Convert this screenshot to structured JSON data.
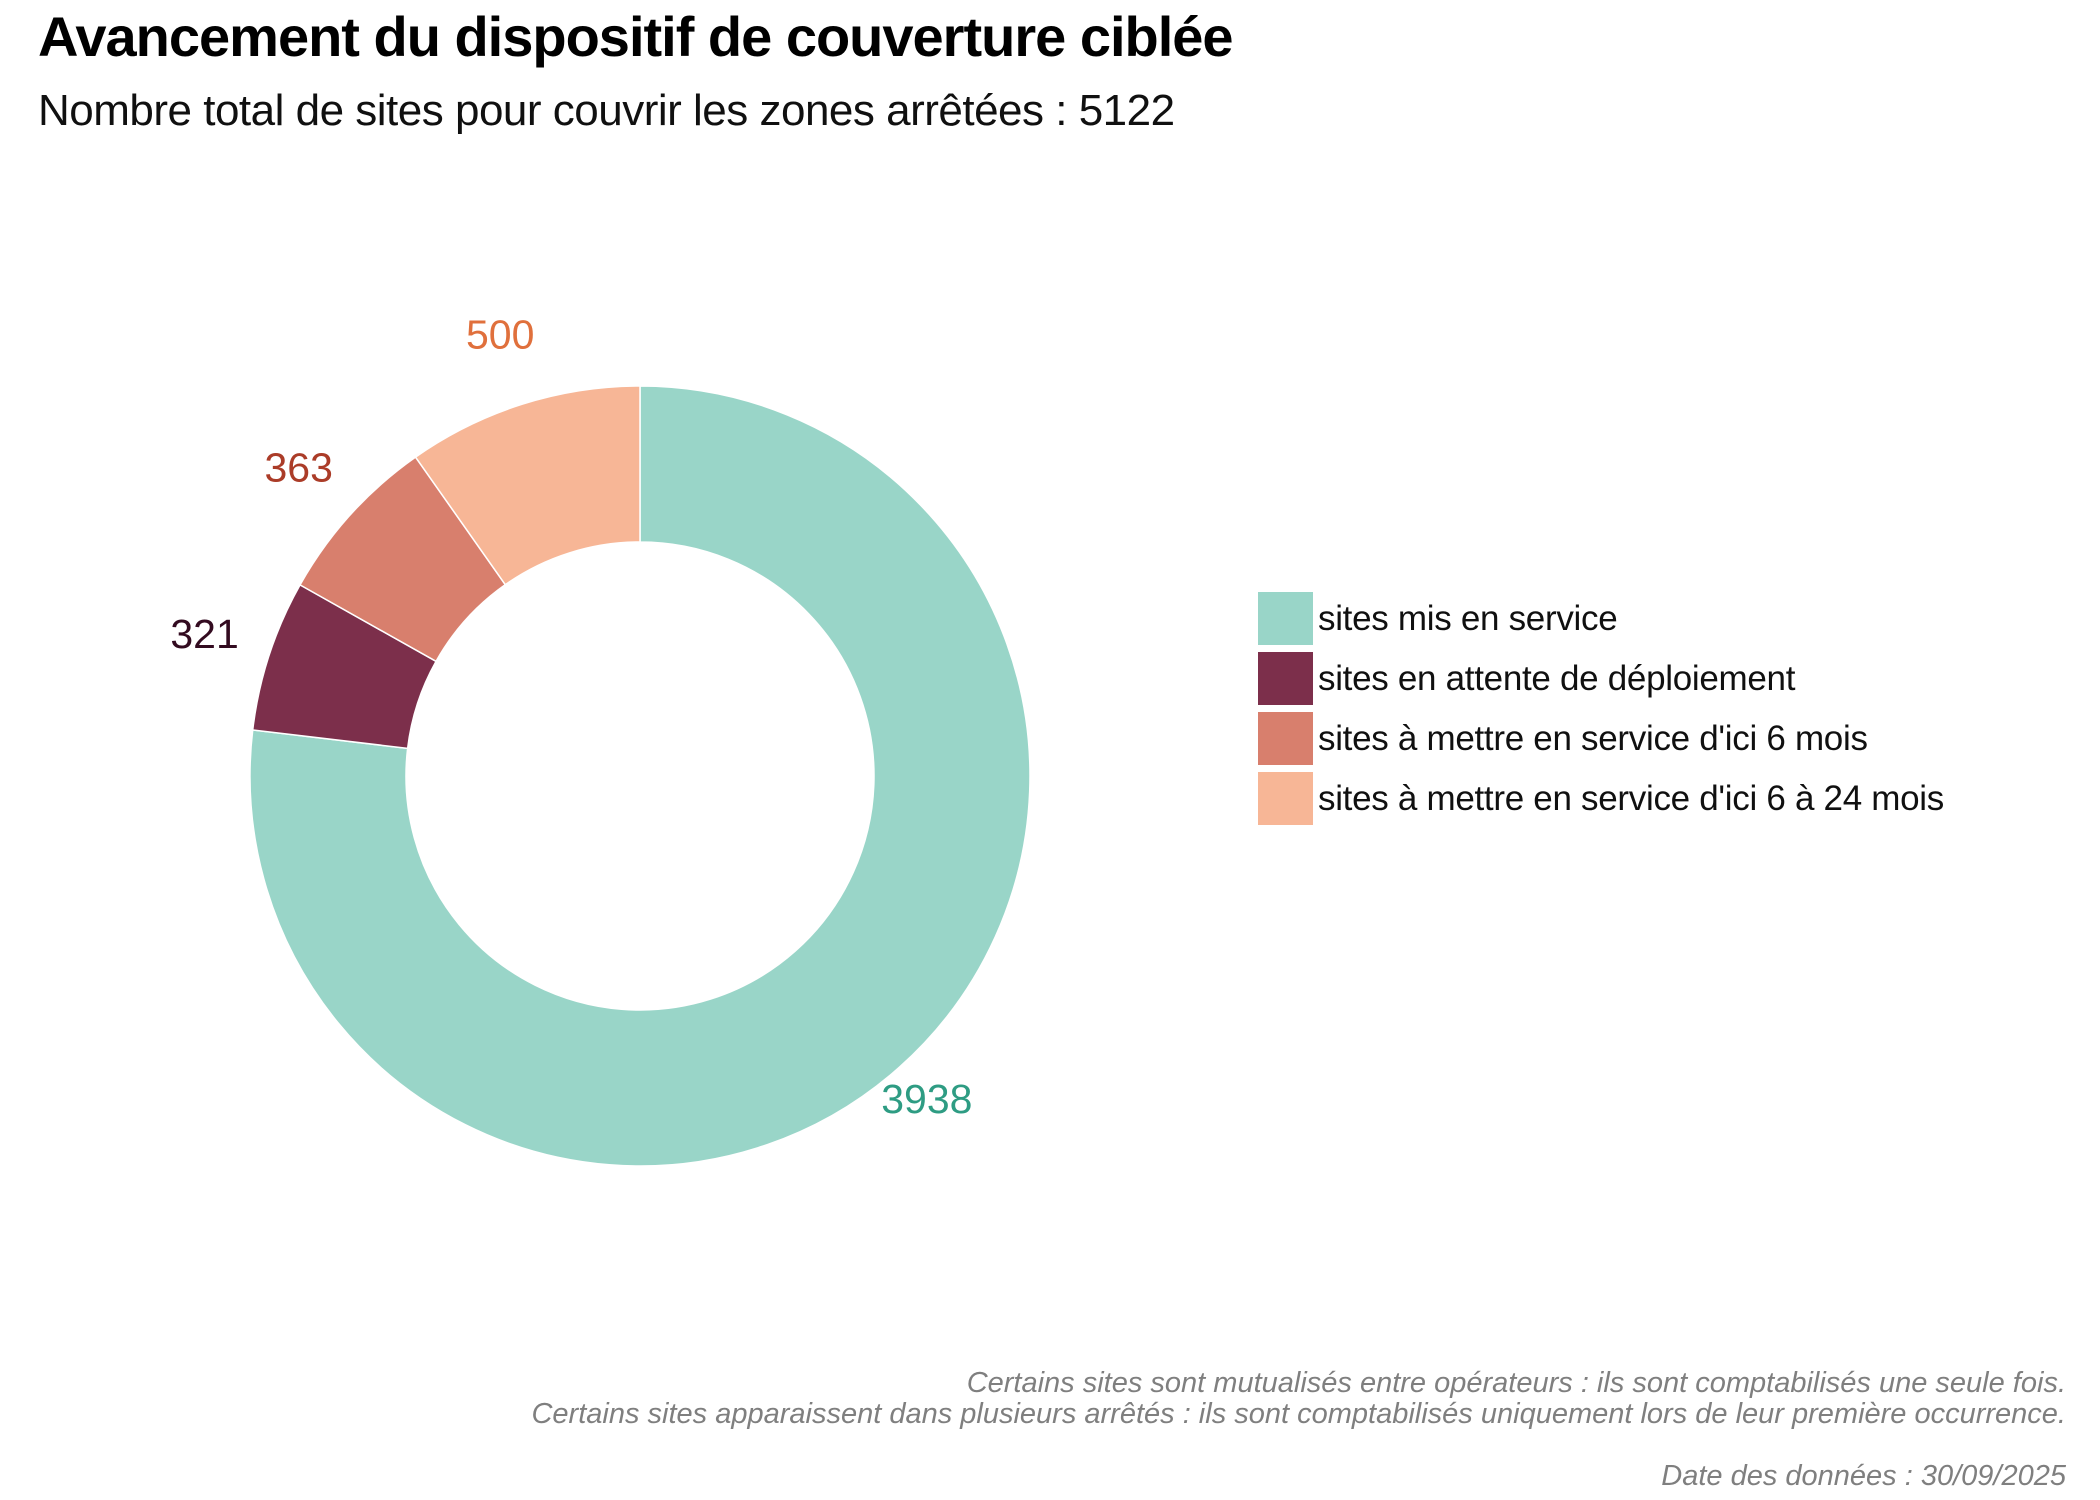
{
  "header": {
    "title": "Avancement du dispositif de couverture ciblée",
    "subtitle": "Nombre total de sites pour couvrir les zones arrêtées : 5122"
  },
  "chart_data": {
    "type": "pie",
    "donut": true,
    "title": "Avancement du dispositif de couverture ciblée",
    "total": 5122,
    "start_angle_deg": 0,
    "direction": "clockwise",
    "legend_position": "right",
    "slices": [
      {
        "label": "sites mis en service",
        "value": 3938,
        "color": "#99d5c8",
        "label_color": "#2e9c83"
      },
      {
        "label": "sites en attente de déploiement",
        "value": 321,
        "color": "#7c2f4b",
        "label_color": "#330b20"
      },
      {
        "label": "sites à mettre en service d'ici 6 mois",
        "value": 363,
        "color": "#d87f6d",
        "label_color": "#ab3c28"
      },
      {
        "label": "sites à mettre en service d'ici 6 à 24 mois",
        "value": 500,
        "color": "#f7b696",
        "label_color": "#e0703c"
      }
    ]
  },
  "footnotes": [
    "Certains sites sont mutualisés entre opérateurs : ils sont comptabilisés une seule fois.",
    "Certains sites apparaissent dans plusieurs arrêtés : ils sont comptabilisés uniquement lors de leur première occurrence."
  ],
  "data_date_label": "Date des données : 30/09/2025"
}
